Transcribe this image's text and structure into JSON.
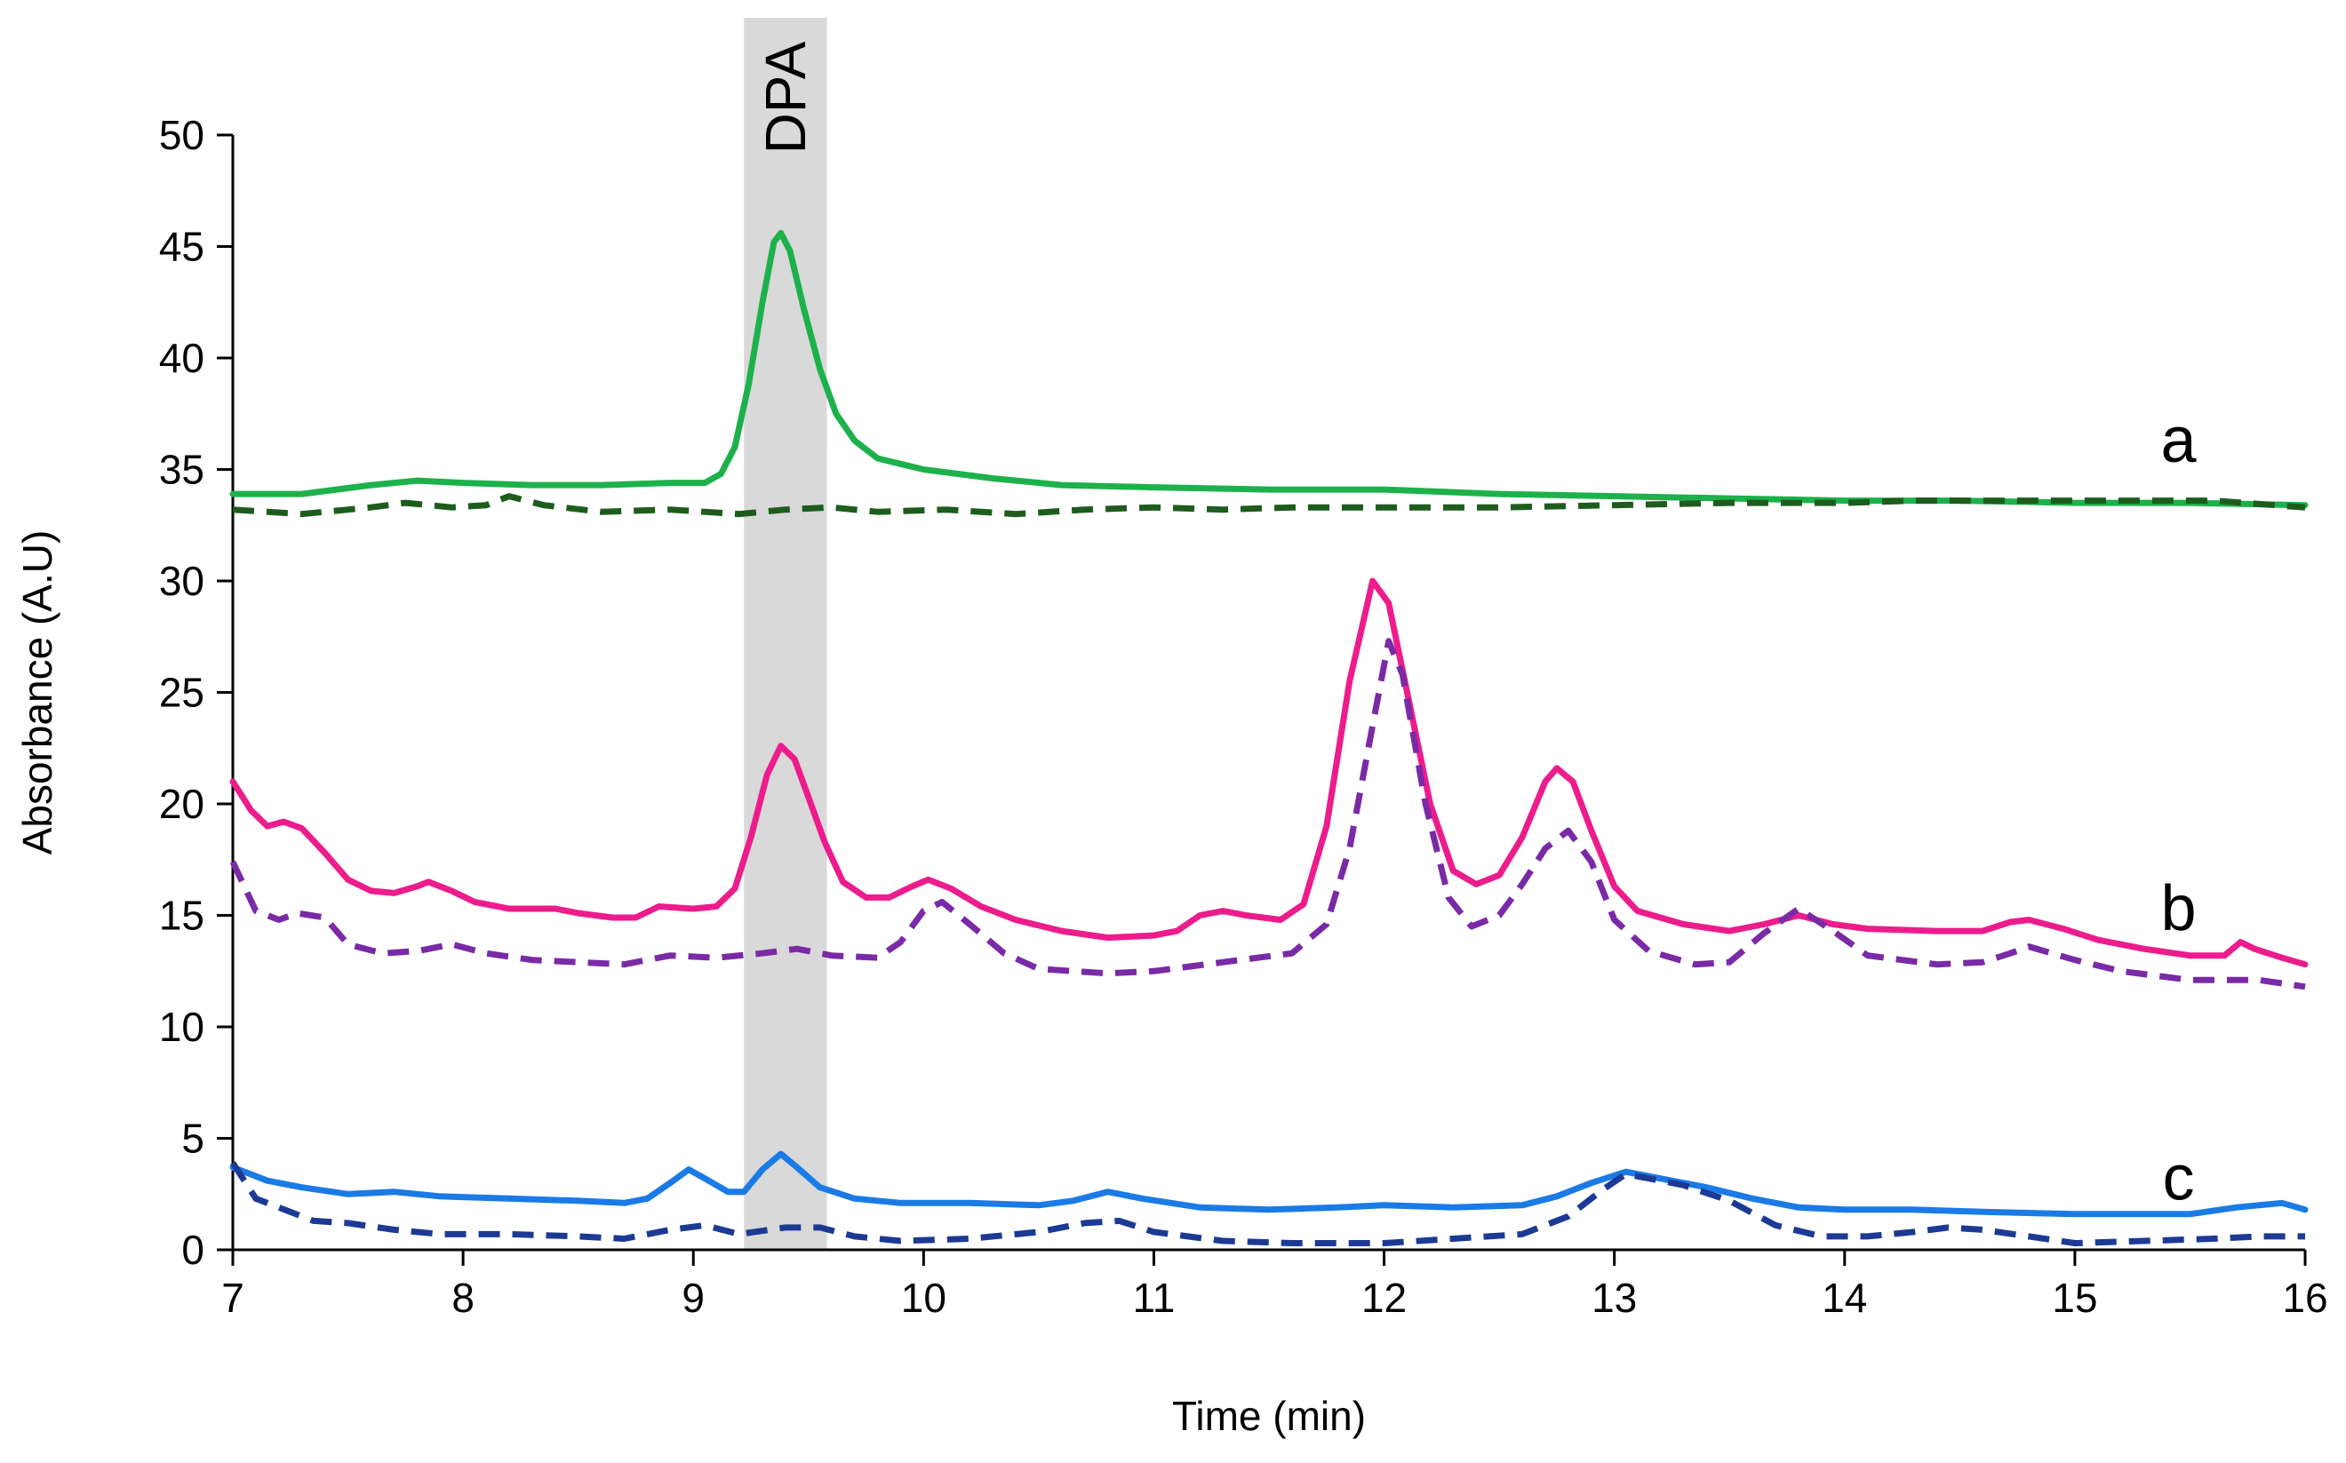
{
  "chart_data": {
    "type": "line",
    "title": "",
    "xlabel": "Time (min)",
    "ylabel": "Absorbance (A.U)",
    "xlim": [
      7,
      16
    ],
    "ylim": [
      0,
      50
    ],
    "x_ticks": [
      7,
      8,
      9,
      10,
      11,
      12,
      13,
      14,
      15,
      16
    ],
    "y_ticks": [
      0,
      5,
      10,
      15,
      20,
      25,
      30,
      35,
      40,
      45,
      50
    ],
    "grid": false,
    "highlight_band": {
      "label": "DPA",
      "x_range": [
        9.22,
        9.58
      ],
      "color": "#d9d9d9"
    },
    "series_labels": [
      {
        "text": "a",
        "x": 15.45,
        "y": 36.3
      },
      {
        "text": "b",
        "x": 15.45,
        "y": 15.3
      },
      {
        "text": "c",
        "x": 15.45,
        "y": 3.2
      }
    ],
    "series": [
      {
        "name": "a-solid",
        "group": "a",
        "color": "#1db14b",
        "dash": false,
        "points": [
          [
            7,
            33.9
          ],
          [
            7.3,
            33.9
          ],
          [
            7.6,
            34.3
          ],
          [
            7.8,
            34.5
          ],
          [
            8.0,
            34.4
          ],
          [
            8.3,
            34.3
          ],
          [
            8.6,
            34.3
          ],
          [
            8.9,
            34.4
          ],
          [
            9.05,
            34.4
          ],
          [
            9.12,
            34.8
          ],
          [
            9.18,
            36.0
          ],
          [
            9.24,
            38.8
          ],
          [
            9.3,
            42.5
          ],
          [
            9.35,
            45.2
          ],
          [
            9.38,
            45.6
          ],
          [
            9.42,
            44.8
          ],
          [
            9.48,
            42.2
          ],
          [
            9.55,
            39.5
          ],
          [
            9.62,
            37.5
          ],
          [
            9.7,
            36.3
          ],
          [
            9.8,
            35.5
          ],
          [
            10.0,
            35.0
          ],
          [
            10.3,
            34.6
          ],
          [
            10.6,
            34.3
          ],
          [
            11.0,
            34.2
          ],
          [
            11.5,
            34.1
          ],
          [
            12.0,
            34.1
          ],
          [
            12.5,
            33.9
          ],
          [
            13.0,
            33.8
          ],
          [
            13.5,
            33.7
          ],
          [
            14.0,
            33.6
          ],
          [
            14.5,
            33.6
          ],
          [
            15.0,
            33.5
          ],
          [
            15.5,
            33.5
          ],
          [
            16.0,
            33.4
          ]
        ]
      },
      {
        "name": "a-dashed",
        "group": "a",
        "color": "#1e5c1e",
        "dash": true,
        "points": [
          [
            7,
            33.2
          ],
          [
            7.3,
            33.0
          ],
          [
            7.6,
            33.3
          ],
          [
            7.75,
            33.5
          ],
          [
            7.95,
            33.3
          ],
          [
            8.1,
            33.4
          ],
          [
            8.2,
            33.8
          ],
          [
            8.35,
            33.4
          ],
          [
            8.6,
            33.1
          ],
          [
            8.9,
            33.2
          ],
          [
            9.2,
            33.0
          ],
          [
            9.4,
            33.2
          ],
          [
            9.6,
            33.3
          ],
          [
            9.8,
            33.1
          ],
          [
            10.1,
            33.2
          ],
          [
            10.4,
            33.0
          ],
          [
            10.7,
            33.2
          ],
          [
            11.0,
            33.3
          ],
          [
            11.3,
            33.2
          ],
          [
            11.6,
            33.3
          ],
          [
            12.0,
            33.3
          ],
          [
            12.5,
            33.3
          ],
          [
            13.0,
            33.4
          ],
          [
            13.5,
            33.5
          ],
          [
            14.0,
            33.5
          ],
          [
            14.3,
            33.6
          ],
          [
            14.6,
            33.6
          ],
          [
            15.0,
            33.6
          ],
          [
            15.3,
            33.6
          ],
          [
            15.6,
            33.6
          ],
          [
            16.0,
            33.3
          ]
        ]
      },
      {
        "name": "b-solid",
        "group": "b",
        "color": "#ec1c8c",
        "dash": false,
        "points": [
          [
            7,
            21.0
          ],
          [
            7.08,
            19.7
          ],
          [
            7.15,
            19.0
          ],
          [
            7.22,
            19.2
          ],
          [
            7.3,
            18.9
          ],
          [
            7.4,
            17.8
          ],
          [
            7.5,
            16.6
          ],
          [
            7.6,
            16.1
          ],
          [
            7.7,
            16.0
          ],
          [
            7.8,
            16.3
          ],
          [
            7.85,
            16.5
          ],
          [
            7.95,
            16.1
          ],
          [
            8.05,
            15.6
          ],
          [
            8.2,
            15.3
          ],
          [
            8.4,
            15.3
          ],
          [
            8.5,
            15.1
          ],
          [
            8.65,
            14.9
          ],
          [
            8.75,
            14.9
          ],
          [
            8.85,
            15.4
          ],
          [
            9.0,
            15.3
          ],
          [
            9.1,
            15.4
          ],
          [
            9.18,
            16.2
          ],
          [
            9.25,
            18.5
          ],
          [
            9.32,
            21.3
          ],
          [
            9.38,
            22.6
          ],
          [
            9.44,
            22.0
          ],
          [
            9.5,
            20.3
          ],
          [
            9.57,
            18.3
          ],
          [
            9.65,
            16.5
          ],
          [
            9.75,
            15.8
          ],
          [
            9.85,
            15.8
          ],
          [
            9.95,
            16.3
          ],
          [
            10.02,
            16.6
          ],
          [
            10.12,
            16.2
          ],
          [
            10.25,
            15.4
          ],
          [
            10.4,
            14.8
          ],
          [
            10.6,
            14.3
          ],
          [
            10.8,
            14.0
          ],
          [
            11.0,
            14.1
          ],
          [
            11.1,
            14.3
          ],
          [
            11.2,
            15.0
          ],
          [
            11.3,
            15.2
          ],
          [
            11.4,
            15.0
          ],
          [
            11.55,
            14.8
          ],
          [
            11.65,
            15.5
          ],
          [
            11.75,
            19.0
          ],
          [
            11.85,
            25.5
          ],
          [
            11.95,
            30.0
          ],
          [
            12.02,
            29.0
          ],
          [
            12.1,
            25.0
          ],
          [
            12.2,
            20.0
          ],
          [
            12.3,
            17.0
          ],
          [
            12.4,
            16.4
          ],
          [
            12.5,
            16.8
          ],
          [
            12.6,
            18.5
          ],
          [
            12.7,
            21.0
          ],
          [
            12.75,
            21.6
          ],
          [
            12.82,
            21.0
          ],
          [
            12.9,
            18.8
          ],
          [
            13.0,
            16.3
          ],
          [
            13.1,
            15.2
          ],
          [
            13.3,
            14.6
          ],
          [
            13.5,
            14.3
          ],
          [
            13.65,
            14.6
          ],
          [
            13.8,
            15.0
          ],
          [
            13.95,
            14.6
          ],
          [
            14.1,
            14.4
          ],
          [
            14.4,
            14.3
          ],
          [
            14.6,
            14.3
          ],
          [
            14.72,
            14.7
          ],
          [
            14.8,
            14.8
          ],
          [
            14.95,
            14.4
          ],
          [
            15.1,
            13.9
          ],
          [
            15.3,
            13.5
          ],
          [
            15.5,
            13.2
          ],
          [
            15.65,
            13.2
          ],
          [
            15.72,
            13.8
          ],
          [
            15.78,
            13.5
          ],
          [
            15.9,
            13.1
          ],
          [
            16.0,
            12.8
          ]
        ]
      },
      {
        "name": "b-dashed",
        "group": "b",
        "color": "#7a2aa6",
        "dash": true,
        "points": [
          [
            7,
            17.4
          ],
          [
            7.1,
            15.2
          ],
          [
            7.2,
            14.8
          ],
          [
            7.28,
            15.1
          ],
          [
            7.4,
            14.9
          ],
          [
            7.5,
            13.7
          ],
          [
            7.65,
            13.3
          ],
          [
            7.8,
            13.4
          ],
          [
            7.95,
            13.7
          ],
          [
            8.1,
            13.3
          ],
          [
            8.3,
            13.0
          ],
          [
            8.5,
            12.9
          ],
          [
            8.7,
            12.8
          ],
          [
            8.9,
            13.2
          ],
          [
            9.1,
            13.1
          ],
          [
            9.3,
            13.3
          ],
          [
            9.45,
            13.5
          ],
          [
            9.6,
            13.2
          ],
          [
            9.8,
            13.1
          ],
          [
            9.9,
            13.8
          ],
          [
            10.0,
            15.2
          ],
          [
            10.08,
            15.6
          ],
          [
            10.2,
            14.6
          ],
          [
            10.35,
            13.3
          ],
          [
            10.5,
            12.6
          ],
          [
            10.8,
            12.4
          ],
          [
            11.0,
            12.5
          ],
          [
            11.3,
            12.9
          ],
          [
            11.6,
            13.3
          ],
          [
            11.75,
            14.6
          ],
          [
            11.85,
            18.0
          ],
          [
            11.95,
            23.5
          ],
          [
            12.02,
            27.3
          ],
          [
            12.08,
            25.8
          ],
          [
            12.18,
            20.0
          ],
          [
            12.28,
            15.8
          ],
          [
            12.38,
            14.5
          ],
          [
            12.5,
            15.0
          ],
          [
            12.6,
            16.4
          ],
          [
            12.7,
            18.0
          ],
          [
            12.8,
            18.8
          ],
          [
            12.9,
            17.4
          ],
          [
            13.0,
            14.8
          ],
          [
            13.15,
            13.4
          ],
          [
            13.35,
            12.8
          ],
          [
            13.5,
            12.9
          ],
          [
            13.65,
            14.2
          ],
          [
            13.8,
            15.3
          ],
          [
            13.95,
            14.3
          ],
          [
            14.1,
            13.2
          ],
          [
            14.4,
            12.8
          ],
          [
            14.6,
            12.9
          ],
          [
            14.72,
            13.3
          ],
          [
            14.8,
            13.6
          ],
          [
            15.0,
            13.0
          ],
          [
            15.2,
            12.5
          ],
          [
            15.5,
            12.1
          ],
          [
            15.8,
            12.1
          ],
          [
            16.0,
            11.8
          ]
        ]
      },
      {
        "name": "c-solid",
        "group": "c",
        "color": "#1a7ae6",
        "dash": false,
        "points": [
          [
            7,
            3.7
          ],
          [
            7.15,
            3.1
          ],
          [
            7.3,
            2.8
          ],
          [
            7.5,
            2.5
          ],
          [
            7.7,
            2.6
          ],
          [
            7.9,
            2.4
          ],
          [
            8.2,
            2.3
          ],
          [
            8.5,
            2.2
          ],
          [
            8.7,
            2.1
          ],
          [
            8.8,
            2.3
          ],
          [
            8.9,
            3.0
          ],
          [
            8.98,
            3.6
          ],
          [
            9.05,
            3.2
          ],
          [
            9.15,
            2.6
          ],
          [
            9.22,
            2.6
          ],
          [
            9.3,
            3.6
          ],
          [
            9.38,
            4.3
          ],
          [
            9.45,
            3.7
          ],
          [
            9.55,
            2.8
          ],
          [
            9.7,
            2.3
          ],
          [
            9.9,
            2.1
          ],
          [
            10.2,
            2.1
          ],
          [
            10.5,
            2.0
          ],
          [
            10.65,
            2.2
          ],
          [
            10.8,
            2.6
          ],
          [
            10.95,
            2.3
          ],
          [
            11.2,
            1.9
          ],
          [
            11.5,
            1.8
          ],
          [
            11.8,
            1.9
          ],
          [
            12.0,
            2.0
          ],
          [
            12.3,
            1.9
          ],
          [
            12.6,
            2.0
          ],
          [
            12.75,
            2.4
          ],
          [
            12.9,
            3.0
          ],
          [
            13.05,
            3.5
          ],
          [
            13.2,
            3.2
          ],
          [
            13.4,
            2.8
          ],
          [
            13.6,
            2.3
          ],
          [
            13.8,
            1.9
          ],
          [
            14.0,
            1.8
          ],
          [
            14.3,
            1.8
          ],
          [
            14.6,
            1.7
          ],
          [
            15.0,
            1.6
          ],
          [
            15.3,
            1.6
          ],
          [
            15.5,
            1.6
          ],
          [
            15.7,
            1.9
          ],
          [
            15.9,
            2.1
          ],
          [
            16.0,
            1.8
          ]
        ]
      },
      {
        "name": "c-dashed",
        "group": "c",
        "color": "#1c3a94",
        "dash": true,
        "points": [
          [
            7,
            3.9
          ],
          [
            7.1,
            2.3
          ],
          [
            7.2,
            1.9
          ],
          [
            7.35,
            1.3
          ],
          [
            7.5,
            1.2
          ],
          [
            7.7,
            0.9
          ],
          [
            7.9,
            0.7
          ],
          [
            8.2,
            0.7
          ],
          [
            8.5,
            0.6
          ],
          [
            8.7,
            0.5
          ],
          [
            8.9,
            0.9
          ],
          [
            9.05,
            1.1
          ],
          [
            9.2,
            0.7
          ],
          [
            9.4,
            1.0
          ],
          [
            9.55,
            1.0
          ],
          [
            9.7,
            0.6
          ],
          [
            9.9,
            0.4
          ],
          [
            10.2,
            0.5
          ],
          [
            10.5,
            0.8
          ],
          [
            10.7,
            1.2
          ],
          [
            10.85,
            1.3
          ],
          [
            11.0,
            0.8
          ],
          [
            11.3,
            0.4
          ],
          [
            11.6,
            0.3
          ],
          [
            12.0,
            0.3
          ],
          [
            12.3,
            0.5
          ],
          [
            12.6,
            0.7
          ],
          [
            12.8,
            1.5
          ],
          [
            12.95,
            2.7
          ],
          [
            13.05,
            3.4
          ],
          [
            13.15,
            3.2
          ],
          [
            13.3,
            2.9
          ],
          [
            13.5,
            2.2
          ],
          [
            13.7,
            1.1
          ],
          [
            13.9,
            0.6
          ],
          [
            14.1,
            0.6
          ],
          [
            14.3,
            0.8
          ],
          [
            14.45,
            1.0
          ],
          [
            14.6,
            0.9
          ],
          [
            14.8,
            0.6
          ],
          [
            15.0,
            0.3
          ],
          [
            15.3,
            0.4
          ],
          [
            15.6,
            0.5
          ],
          [
            15.8,
            0.6
          ],
          [
            16.0,
            0.6
          ]
        ]
      }
    ]
  }
}
